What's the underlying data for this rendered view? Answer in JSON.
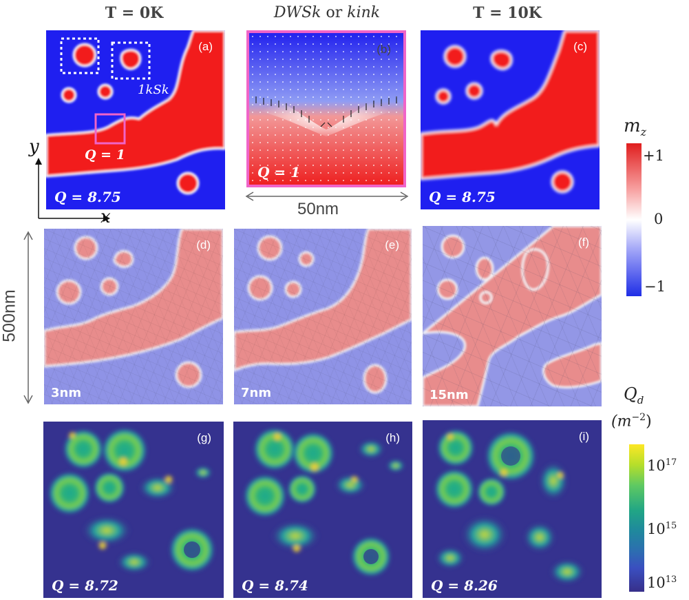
{
  "columns": {
    "left": "T = 0K",
    "middle_a": "DWSk",
    "middle_or": "or",
    "middle_b": "kink",
    "right": "T = 10K"
  },
  "panels": {
    "a": {
      "label": "(a)",
      "q": "Q = 8.75",
      "inner_q": "Q =  1",
      "annotation": "1kSk"
    },
    "b": {
      "label": "(b)",
      "q": "Q = 1"
    },
    "c": {
      "label": "(c)",
      "q": "Q = 8.75"
    },
    "d": {
      "label": "(d)",
      "thickness": "3nm"
    },
    "e": {
      "label": "(e)",
      "thickness": "7nm"
    },
    "f": {
      "label": "(f)",
      "thickness": "15nm"
    },
    "g": {
      "label": "(g)",
      "q": "Q =  8.72"
    },
    "h": {
      "label": "(h)",
      "q": "Q =  8.74"
    },
    "i": {
      "label": "(i)",
      "q": "Q = 8.26"
    }
  },
  "axes": {
    "x": "x",
    "y": "y"
  },
  "scale_bars": {
    "horizontal": "50nm",
    "vertical": "500nm"
  },
  "colorbar_mz": {
    "label": "m_z",
    "label_main": "m",
    "label_sub": "z",
    "ticks": [
      "+1",
      "0",
      "−1"
    ],
    "colors": {
      "top": "#e01e1e",
      "mid": "#ffffff",
      "bottom": "#1f2ee6"
    }
  },
  "colorbar_qd": {
    "label_main": "Q",
    "label_sub": "d",
    "unit": "(m",
    "unit_exp": "−2",
    "unit_close": ")",
    "ticks": [
      {
        "base": "10",
        "exp": "17"
      },
      {
        "base": "10",
        "exp": "15"
      },
      {
        "base": "10",
        "exp": "13"
      }
    ]
  },
  "colors": {
    "red": "#f21a1a",
    "blue": "#1f1ff0",
    "pink": "#f064c8",
    "muted_red": "#e88c8c",
    "muted_blue": "#8f93e6",
    "viridis_bg": "#35328f"
  }
}
